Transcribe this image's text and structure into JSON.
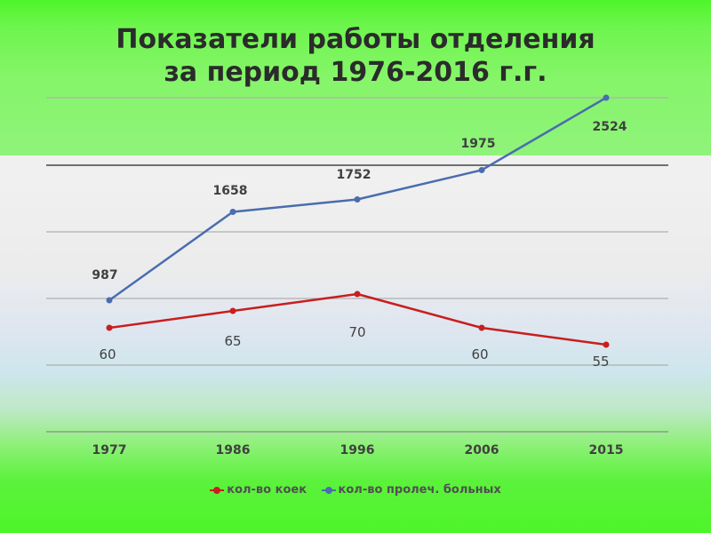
{
  "title_lines": [
    "Показатели работы отделения",
    "за период 1976-2016 г.г."
  ],
  "chart_data": {
    "type": "line",
    "categories": [
      "1977",
      "1986",
      "1996",
      "2006",
      "2015"
    ],
    "series": [
      {
        "name": "кол-во коек",
        "color": "#c81e1e",
        "values": [
          60,
          65,
          70,
          60,
          55
        ]
      },
      {
        "name": "кол-во пролеч. больных",
        "color": "#4a6cb0",
        "values": [
          987,
          1658,
          1752,
          1975,
          2524
        ]
      }
    ],
    "grid": true,
    "legend_position": "bottom"
  }
}
